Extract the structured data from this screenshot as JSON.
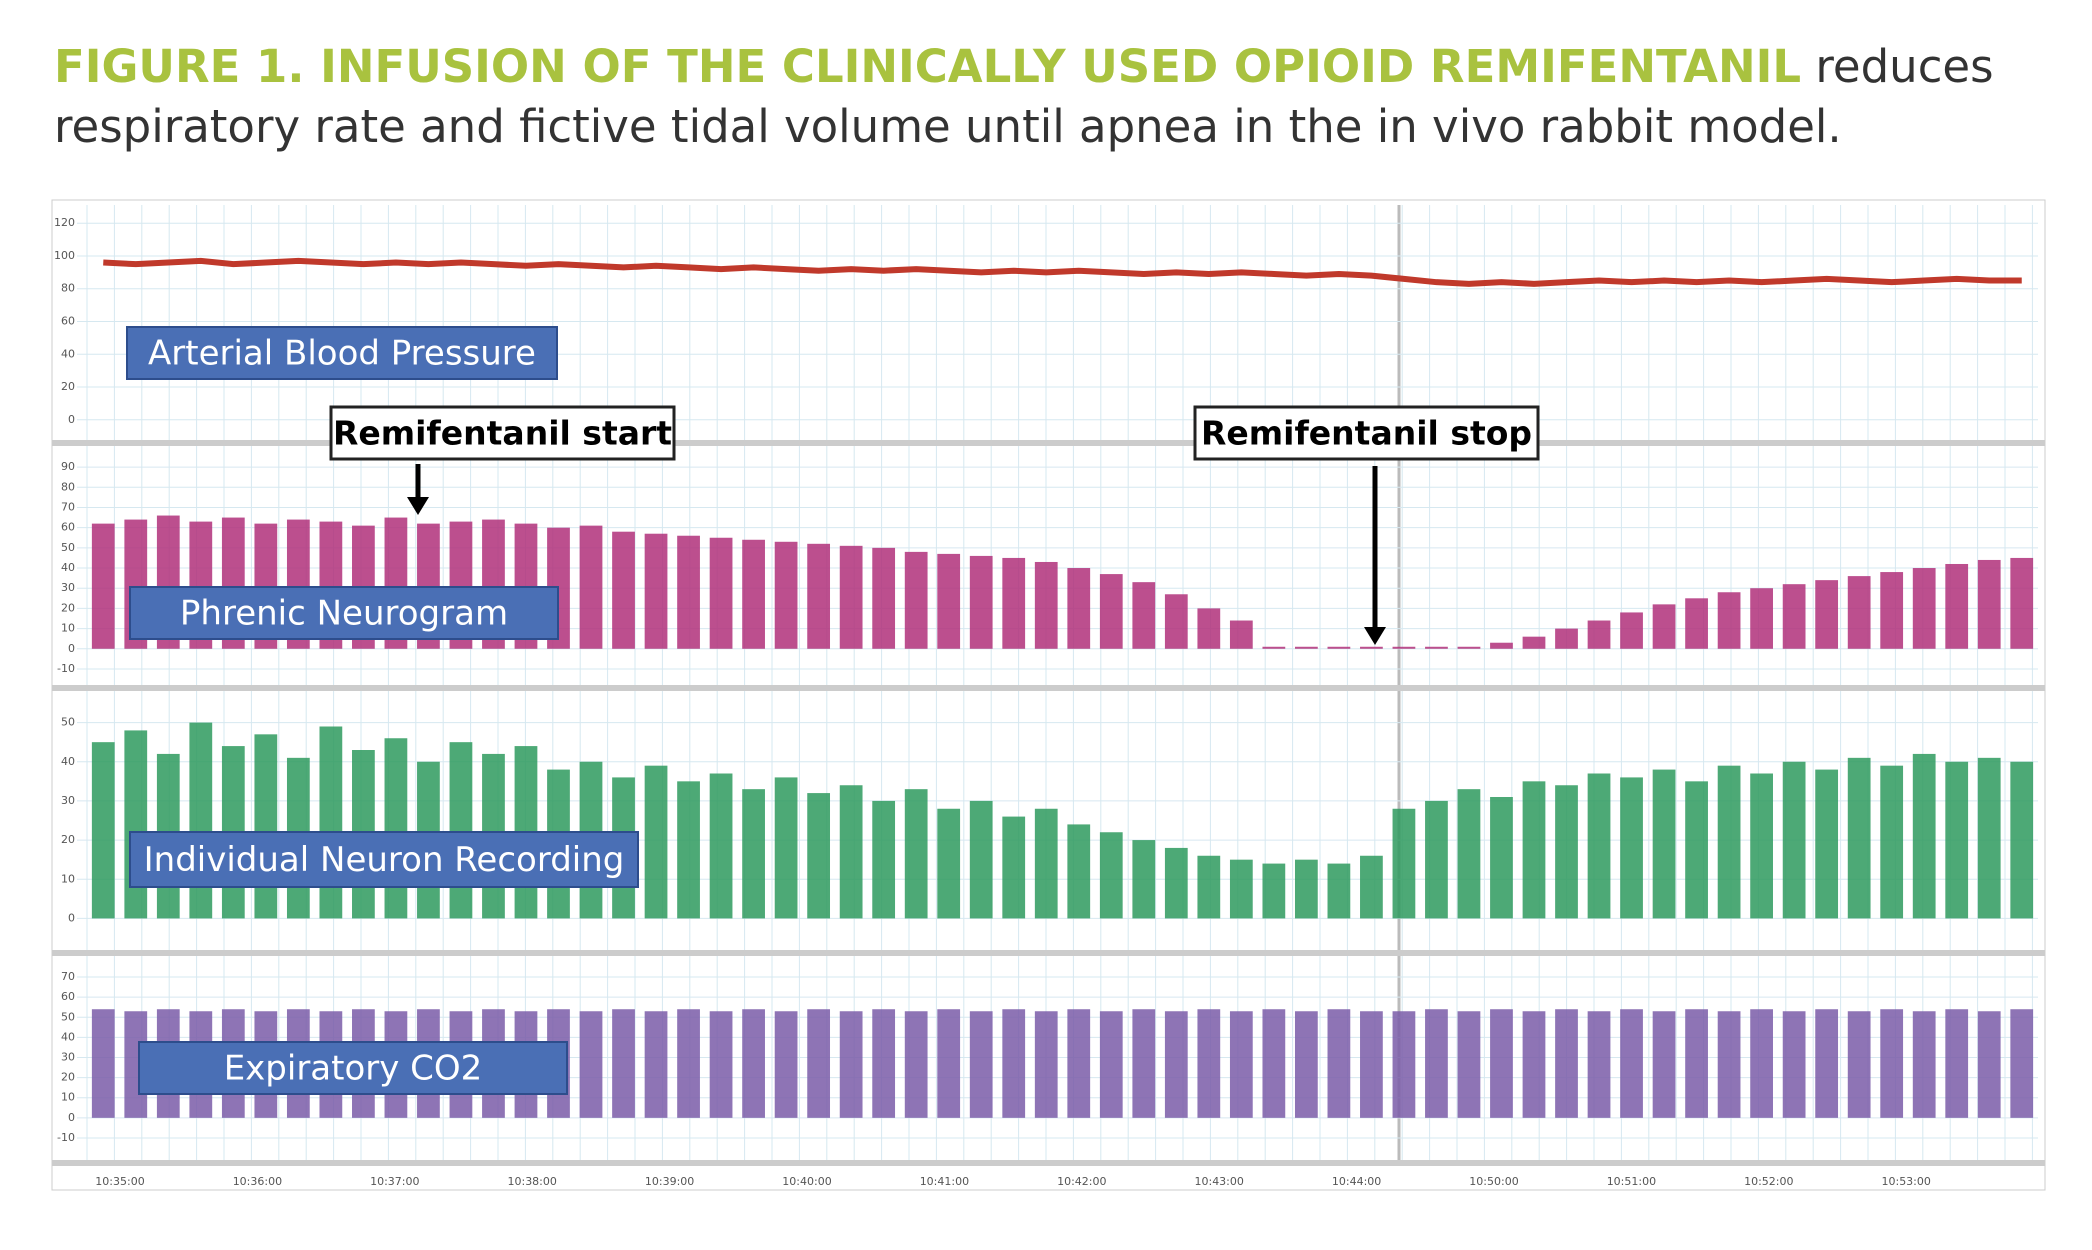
{
  "figure": {
    "title_bold": "FIGURE 1. INFUSION OF THE CLINICALLY USED OPIOID REMIFENTANIL",
    "title_rest_1": "reduces",
    "title_rest_2": "respiratory rate and fictive tidal volume until apnea in the in vivo rabbit model.",
    "x_ticks": [
      "10:35:00",
      "10:36:00",
      "10:37:00",
      "10:38:00",
      "10:39:00",
      "10:40:00",
      "10:41:00",
      "10:42:00",
      "10:43:00",
      "10:44:00",
      "10:50:00",
      "10:51:00",
      "10:52:00",
      "10:53:00"
    ],
    "annotations": [
      "Remifentanil start",
      "Remifentanil stop"
    ],
    "panels": [
      {
        "label": "Arterial Blood Pressure",
        "type": "line",
        "color": "#c0392b",
        "ylim": [
          -5,
          125
        ],
        "yticks": [
          0,
          20,
          40,
          60,
          80,
          100,
          120
        ],
        "values": [
          96,
          95,
          96,
          97,
          95,
          96,
          97,
          96,
          95,
          96,
          95,
          96,
          95,
          94,
          95,
          94,
          93,
          94,
          93,
          92,
          93,
          92,
          91,
          92,
          91,
          92,
          91,
          90,
          91,
          90,
          91,
          90,
          89,
          90,
          89,
          90,
          89,
          88,
          89,
          88,
          86,
          84,
          83,
          84,
          83,
          84,
          85,
          84,
          85,
          84,
          85,
          84,
          85,
          86,
          85,
          84,
          85,
          86,
          85,
          85
        ]
      },
      {
        "label": "Phrenic Neurogram",
        "type": "bursts",
        "color": "#b0307a",
        "ylim": [
          -12,
          95
        ],
        "yticks": [
          -10,
          0,
          10,
          20,
          30,
          40,
          50,
          60,
          70,
          80,
          90
        ],
        "values": [
          62,
          64,
          66,
          63,
          65,
          62,
          64,
          63,
          61,
          65,
          62,
          63,
          64,
          62,
          60,
          61,
          58,
          57,
          56,
          55,
          54,
          53,
          52,
          51,
          50,
          48,
          47,
          46,
          45,
          43,
          40,
          37,
          33,
          27,
          20,
          14,
          1,
          1,
          1,
          1,
          1,
          1,
          1,
          3,
          6,
          10,
          14,
          18,
          22,
          25,
          28,
          30,
          32,
          34,
          36,
          38,
          40,
          42,
          44,
          45
        ]
      },
      {
        "label": "Individual Neuron Recording",
        "type": "bursts",
        "color": "#2e9a5e",
        "ylim": [
          -5,
          55
        ],
        "yticks": [
          0,
          10,
          20,
          30,
          40,
          50
        ],
        "values": [
          45,
          48,
          42,
          50,
          44,
          47,
          41,
          49,
          43,
          46,
          40,
          45,
          42,
          44,
          38,
          40,
          36,
          39,
          35,
          37,
          33,
          36,
          32,
          34,
          30,
          33,
          28,
          30,
          26,
          28,
          24,
          22,
          20,
          18,
          16,
          15,
          14,
          15,
          14,
          16,
          28,
          30,
          33,
          31,
          35,
          34,
          37,
          36,
          38,
          35,
          39,
          37,
          40,
          38,
          41,
          39,
          42,
          40,
          41,
          40
        ]
      },
      {
        "label": "Expiratory CO2",
        "type": "bursts",
        "color": "#7a5ca8",
        "ylim": [
          -15,
          75
        ],
        "yticks": [
          -10,
          0,
          10,
          20,
          30,
          40,
          50,
          60,
          70
        ],
        "values": [
          54,
          53,
          54,
          53,
          54,
          53,
          54,
          53,
          54,
          53,
          54,
          53,
          54,
          53,
          54,
          53,
          54,
          53,
          54,
          53,
          54,
          53,
          54,
          53,
          54,
          53,
          54,
          53,
          54,
          53,
          54,
          53,
          54,
          53,
          54,
          53,
          54,
          53,
          54,
          53,
          53,
          54,
          53,
          54,
          53,
          54,
          53,
          54,
          53,
          54,
          53,
          54,
          53,
          54,
          53,
          54,
          53,
          54,
          53,
          54
        ]
      }
    ]
  }
}
